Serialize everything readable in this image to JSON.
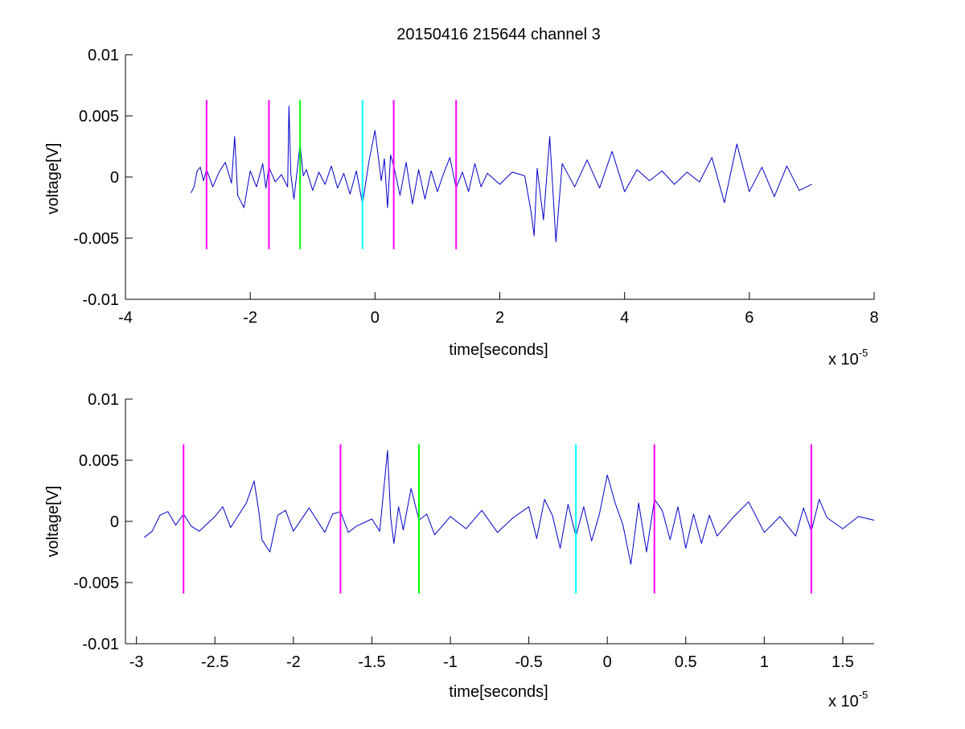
{
  "chart_data": [
    {
      "type": "line",
      "title": "20150416 215644 channel 3",
      "xlabel": "time[seconds]",
      "ylabel": "voltage[V]",
      "x_exponent_label": "x 10",
      "x_exponent": "-5",
      "xlim": [
        -4,
        8
      ],
      "ylim": [
        -0.01,
        0.01
      ],
      "x_ticks": [
        -4,
        -2,
        0,
        2,
        4,
        6,
        8
      ],
      "x_tick_labels": [
        "-4",
        "-2",
        "0",
        "2",
        "4",
        "6",
        "8"
      ],
      "y_ticks": [
        0.01,
        0.005,
        0,
        -0.005,
        -0.01
      ],
      "y_tick_labels": [
        "0.01",
        "0.005",
        "0",
        "-0.005",
        "-0.01"
      ],
      "grid": false,
      "series": [
        {
          "color": "#0000cc",
          "x": [
            -2.95,
            -2.9,
            -2.85,
            -2.8,
            -2.75,
            -2.7,
            -2.6,
            -2.5,
            -2.4,
            -2.3,
            -2.25,
            -2.2,
            -2.1,
            -2.0,
            -1.9,
            -1.8,
            -1.75,
            -1.7,
            -1.6,
            -1.5,
            -1.4,
            -1.38,
            -1.35,
            -1.3,
            -1.2,
            -1.15,
            -1.1,
            -1.0,
            -0.9,
            -0.8,
            -0.7,
            -0.6,
            -0.5,
            -0.4,
            -0.3,
            -0.2,
            -0.1,
            0.0,
            0.1,
            0.15,
            0.2,
            0.25,
            0.3,
            0.4,
            0.5,
            0.6,
            0.7,
            0.8,
            0.9,
            1.0,
            1.1,
            1.2,
            1.3,
            1.4,
            1.5,
            1.6,
            1.7,
            1.8,
            2.0,
            2.2,
            2.4,
            2.5,
            2.55,
            2.6,
            2.7,
            2.8,
            2.9,
            3.0,
            3.2,
            3.4,
            3.6,
            3.8,
            4.0,
            4.2,
            4.4,
            4.6,
            4.8,
            5.0,
            5.2,
            5.4,
            5.6,
            5.8,
            6.0,
            6.2,
            6.4,
            6.6,
            6.8,
            7.0
          ],
          "y": [
            -0.0013,
            -0.0008,
            0.0005,
            0.0008,
            -0.0003,
            0.0006,
            -0.0008,
            0.0004,
            0.0012,
            -0.0005,
            0.0033,
            -0.0015,
            -0.0025,
            0.0005,
            -0.0008,
            0.0011,
            -0.0009,
            0.0008,
            -0.0004,
            0.0002,
            -0.0008,
            0.0058,
            0.0003,
            -0.0018,
            0.0027,
            0.0001,
            0.0006,
            -0.0011,
            0.0004,
            -0.0006,
            0.0009,
            -0.0009,
            0.0003,
            -0.0014,
            0.0005,
            -0.0022,
            0.0012,
            0.0038,
            -0.0003,
            0.0015,
            -0.0025,
            0.0018,
            0.0009,
            -0.0015,
            0.0012,
            -0.0022,
            0.0006,
            -0.0018,
            0.0005,
            -0.0012,
            0.0003,
            0.0016,
            -0.0009,
            0.0004,
            -0.0012,
            0.0011,
            -0.0008,
            0.0003,
            -0.0006,
            0.0004,
            0.0001,
            -0.0028,
            -0.0048,
            0.0007,
            -0.0035,
            0.0033,
            -0.0053,
            0.0011,
            -0.0008,
            0.0014,
            -0.0009,
            0.0021,
            -0.0012,
            0.0006,
            -0.0003,
            0.0005,
            -0.0006,
            0.0004,
            -0.0004,
            0.0016,
            -0.0021,
            0.0027,
            -0.0012,
            0.0008,
            -0.0016,
            0.0009,
            -0.0011,
            -0.0006
          ]
        }
      ],
      "markers": [
        {
          "x": -2.7,
          "color": "#ff00ff"
        },
        {
          "x": -1.7,
          "color": "#ff00ff"
        },
        {
          "x": -1.2,
          "color": "#00ff00"
        },
        {
          "x": -0.2,
          "color": "#00ffff"
        },
        {
          "x": 0.3,
          "color": "#ff00ff"
        },
        {
          "x": 1.3,
          "color": "#ff00ff"
        }
      ],
      "marker_ylim": [
        -0.0059,
        0.0063
      ]
    },
    {
      "type": "line",
      "title": "",
      "xlabel": "time[seconds]",
      "ylabel": "voltage[V]",
      "x_exponent_label": "x 10",
      "x_exponent": "-5",
      "xlim": [
        -3.07,
        1.7
      ],
      "ylim": [
        -0.01,
        0.01
      ],
      "x_ticks": [
        -3,
        -2.5,
        -2,
        -1.5,
        -1,
        -0.5,
        0,
        0.5,
        1,
        1.5
      ],
      "x_tick_labels": [
        "-3",
        "-2.5",
        "-2",
        "-1.5",
        "-1",
        "-0.5",
        "0",
        "0.5",
        "1",
        "1.5"
      ],
      "y_ticks": [
        0.01,
        0.005,
        0,
        -0.005,
        -0.01
      ],
      "y_tick_labels": [
        "0.01",
        "0.005",
        "0",
        "-0.005",
        "-0.01"
      ],
      "grid": false,
      "series": [
        {
          "color": "#0000cc",
          "x": [
            -2.95,
            -2.9,
            -2.85,
            -2.8,
            -2.75,
            -2.7,
            -2.65,
            -2.6,
            -2.5,
            -2.45,
            -2.4,
            -2.3,
            -2.25,
            -2.22,
            -2.2,
            -2.15,
            -2.1,
            -2.05,
            -2.0,
            -1.9,
            -1.8,
            -1.75,
            -1.7,
            -1.65,
            -1.6,
            -1.5,
            -1.45,
            -1.4,
            -1.38,
            -1.36,
            -1.33,
            -1.3,
            -1.25,
            -1.2,
            -1.15,
            -1.1,
            -1.0,
            -0.9,
            -0.8,
            -0.7,
            -0.6,
            -0.5,
            -0.45,
            -0.4,
            -0.35,
            -0.3,
            -0.25,
            -0.2,
            -0.15,
            -0.1,
            -0.05,
            0.0,
            0.05,
            0.1,
            0.15,
            0.2,
            0.25,
            0.3,
            0.35,
            0.4,
            0.45,
            0.5,
            0.55,
            0.6,
            0.65,
            0.7,
            0.8,
            0.9,
            1.0,
            1.1,
            1.2,
            1.25,
            1.3,
            1.35,
            1.4,
            1.5,
            1.6,
            1.7
          ],
          "y": [
            -0.0013,
            -0.0008,
            0.0005,
            0.0008,
            -0.0003,
            0.0006,
            -0.0004,
            -0.0008,
            0.0004,
            0.0012,
            -0.0005,
            0.0015,
            0.0033,
            0.0008,
            -0.0015,
            -0.0025,
            0.0005,
            0.0009,
            -0.0008,
            0.0011,
            -0.0009,
            0.0006,
            0.0008,
            -0.0009,
            -0.0004,
            0.0002,
            -0.0008,
            0.0058,
            0.0003,
            -0.0018,
            0.0012,
            -0.0007,
            0.0027,
            0.0001,
            0.0006,
            -0.0011,
            0.0004,
            -0.0006,
            0.0009,
            -0.0009,
            0.0003,
            0.0012,
            -0.0014,
            0.0018,
            0.0005,
            -0.0022,
            0.0014,
            -0.0012,
            0.0012,
            -0.0016,
            0.0006,
            0.0038,
            0.0015,
            -0.0003,
            -0.0035,
            0.0015,
            -0.0025,
            0.0018,
            0.0009,
            -0.0015,
            0.0012,
            -0.0022,
            0.0006,
            -0.0018,
            0.0005,
            -0.0012,
            0.0003,
            0.0016,
            -0.0009,
            0.0004,
            -0.0012,
            0.0011,
            -0.0008,
            0.0018,
            0.0003,
            -0.0006,
            0.0004,
            0.0001
          ]
        }
      ],
      "markers": [
        {
          "x": -2.7,
          "color": "#ff00ff"
        },
        {
          "x": -1.7,
          "color": "#ff00ff"
        },
        {
          "x": -1.2,
          "color": "#00ff00"
        },
        {
          "x": -0.2,
          "color": "#00ffff"
        },
        {
          "x": 0.3,
          "color": "#ff00ff"
        },
        {
          "x": 1.3,
          "color": "#ff00ff"
        }
      ],
      "marker_ylim": [
        -0.0059,
        0.0063
      ]
    }
  ]
}
